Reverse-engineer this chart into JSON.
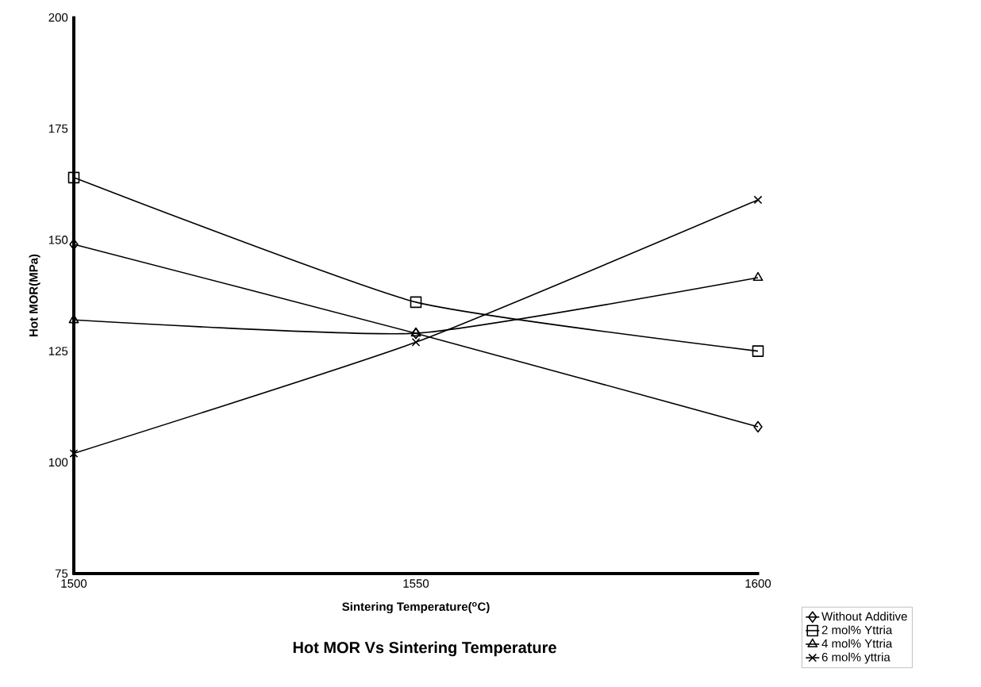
{
  "chart_data": {
    "type": "line",
    "title": "Hot MOR Vs Sintering Temperature",
    "xlabel": "Sintering Temperature($^{o}$C)",
    "ylabel": "Hot MOR(MPa)",
    "x": [
      1500,
      1550,
      1600
    ],
    "xlim": [
      1500,
      1600
    ],
    "xticks": [
      1500,
      1550,
      1600
    ],
    "ylim": [
      75,
      200
    ],
    "yticks": [
      75,
      100,
      125,
      150,
      175,
      200
    ],
    "grid": false,
    "legend": "bottom right",
    "line_style": "solid",
    "series": [
      {
        "name": "Without Additive",
        "color": "#000000",
        "marker": "diamond",
        "values": [
          149,
          129,
          108
        ]
      },
      {
        "name": "2 mol% Yttria",
        "color": "#000000",
        "marker": "square",
        "values": [
          164,
          136,
          125
        ]
      },
      {
        "name": "4 mol% Yttria",
        "color": "#000000",
        "marker": "triangle",
        "values": [
          132,
          129,
          141.5
        ]
      },
      {
        "name": "6 mol% yttria",
        "color": "#000000",
        "marker": "cross",
        "values": [
          102,
          127,
          159
        ]
      }
    ]
  }
}
